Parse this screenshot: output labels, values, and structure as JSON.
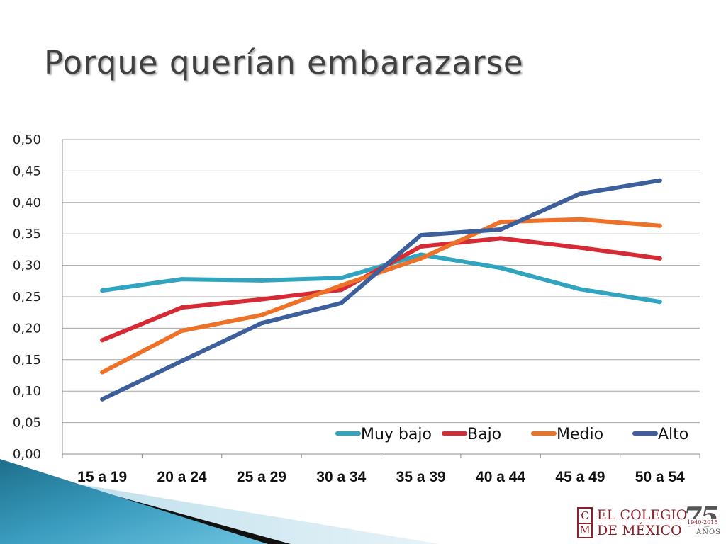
{
  "slide": {
    "title": "Porque querían embarazarse"
  },
  "logo": {
    "monogram_top": "C",
    "monogram_bottom": "M",
    "line1": "EL COLEGIO",
    "line2": "DE MÉXICO",
    "anniversary": "75",
    "years": "1940-2015",
    "anos": "AÑOS",
    "color": "#8b1f2a"
  },
  "chart_data": {
    "type": "line",
    "title": "",
    "xlabel": "",
    "ylabel": "",
    "categories": [
      "15 a 19",
      "20 a 24",
      "25 a 29",
      "30 a 34",
      "35 a 39",
      "40 a 44",
      "45 a 49",
      "50 a 54"
    ],
    "ylim": [
      0,
      0.5
    ],
    "yticks": [
      0.0,
      0.05,
      0.1,
      0.15,
      0.2,
      0.25,
      0.3,
      0.35,
      0.4,
      0.45,
      0.5
    ],
    "ytick_labels": [
      "0,00",
      "0,05",
      "0,10",
      "0,15",
      "0,20",
      "0,25",
      "0,30",
      "0,35",
      "0,40",
      "0,45",
      "0,50"
    ],
    "grid": true,
    "legend_position": "bottom-right",
    "series": [
      {
        "name": "Muy bajo",
        "color": "#31a5bf",
        "values": [
          0.26,
          0.278,
          0.276,
          0.28,
          0.317,
          0.296,
          0.262,
          0.242
        ]
      },
      {
        "name": "Bajo",
        "color": "#d62b35",
        "values": [
          0.181,
          0.233,
          0.246,
          0.261,
          0.33,
          0.343,
          0.328,
          0.311
        ]
      },
      {
        "name": "Medio",
        "color": "#ed7129",
        "values": [
          0.13,
          0.196,
          0.221,
          0.268,
          0.311,
          0.369,
          0.373,
          0.363
        ]
      },
      {
        "name": "Alto",
        "color": "#3d5f9b",
        "values": [
          0.087,
          0.148,
          0.208,
          0.24,
          0.348,
          0.357,
          0.414,
          0.435
        ]
      }
    ]
  }
}
